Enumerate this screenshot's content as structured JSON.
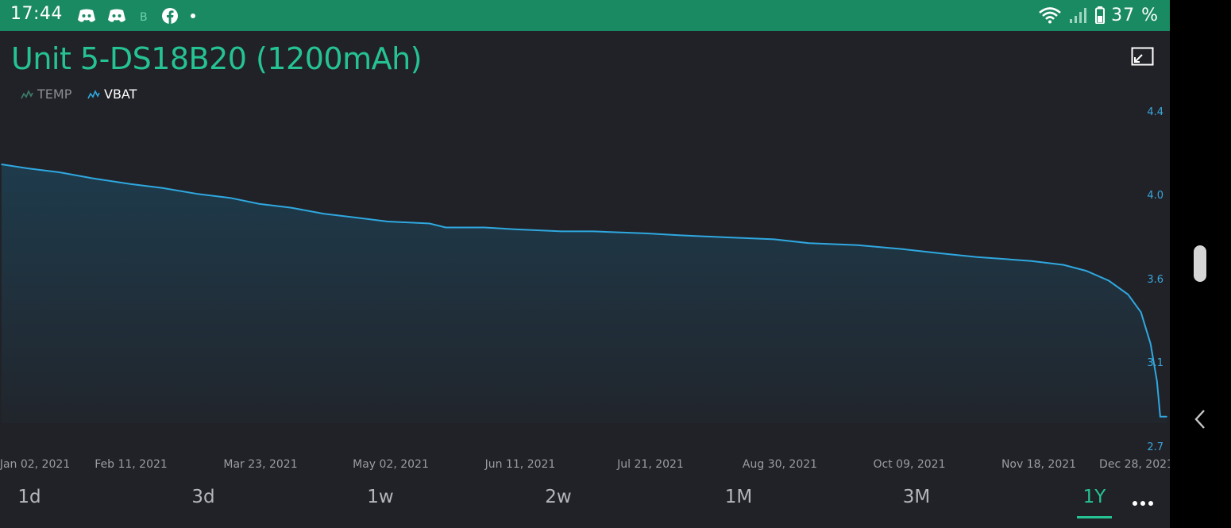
{
  "status_bar": {
    "time": "17:44",
    "battery": "37 %",
    "icons": [
      "discord-icon",
      "discord-icon",
      "bitcoin-icon",
      "facebook-icon",
      "dot-icon",
      "wifi-icon",
      "signal-icon",
      "battery-icon"
    ]
  },
  "widget": {
    "title": "Unit 5-DS18B20 (1200mAh)",
    "legend": [
      {
        "name": "TEMP",
        "active": false,
        "color": "#3f7d6a"
      },
      {
        "name": "VBAT",
        "active": true,
        "color": "#2fa8e0"
      }
    ]
  },
  "chart_data": {
    "type": "area",
    "series": [
      {
        "name": "VBAT",
        "color": "#2fa8e0",
        "points": [
          [
            "2021-01-02",
            4.13
          ],
          [
            "2021-01-10",
            4.11
          ],
          [
            "2021-01-20",
            4.09
          ],
          [
            "2021-01-30",
            4.06
          ],
          [
            "2021-02-11",
            4.03
          ],
          [
            "2021-02-21",
            4.01
          ],
          [
            "2021-03-04",
            3.98
          ],
          [
            "2021-03-14",
            3.96
          ],
          [
            "2021-03-23",
            3.93
          ],
          [
            "2021-04-02",
            3.91
          ],
          [
            "2021-04-12",
            3.88
          ],
          [
            "2021-04-22",
            3.86
          ],
          [
            "2021-05-02",
            3.84
          ],
          [
            "2021-05-15",
            3.83
          ],
          [
            "2021-05-20",
            3.81
          ],
          [
            "2021-06-01",
            3.81
          ],
          [
            "2021-06-11",
            3.8
          ],
          [
            "2021-06-25",
            3.79
          ],
          [
            "2021-07-05",
            3.79
          ],
          [
            "2021-07-21",
            3.78
          ],
          [
            "2021-08-01",
            3.77
          ],
          [
            "2021-08-15",
            3.76
          ],
          [
            "2021-08-30",
            3.75
          ],
          [
            "2021-09-10",
            3.73
          ],
          [
            "2021-09-25",
            3.72
          ],
          [
            "2021-10-09",
            3.7
          ],
          [
            "2021-10-20",
            3.68
          ],
          [
            "2021-11-01",
            3.66
          ],
          [
            "2021-11-18",
            3.64
          ],
          [
            "2021-11-28",
            3.62
          ],
          [
            "2021-12-05",
            3.59
          ],
          [
            "2021-12-12",
            3.54
          ],
          [
            "2021-12-18",
            3.47
          ],
          [
            "2021-12-22",
            3.38
          ],
          [
            "2021-12-25",
            3.22
          ],
          [
            "2021-12-27",
            3.03
          ],
          [
            "2021-12-28",
            2.85
          ],
          [
            "2021-12-30",
            2.85
          ]
        ]
      }
    ],
    "x_ticks": [
      "Jan 02, 2021",
      "Feb 11, 2021",
      "Mar 23, 2021",
      "May 02, 2021",
      "Jun 11, 2021",
      "Jul 21, 2021",
      "Aug 30, 2021",
      "Oct 09, 2021",
      "Nov 18, 2021",
      "Dec 28, 2021"
    ],
    "y_ticks": [
      "4.4",
      "4.0",
      "3.6",
      "3.1",
      "2.7"
    ],
    "x_range": [
      "2021-01-02",
      "2021-12-30"
    ],
    "y_range": [
      2.7,
      4.4
    ],
    "y_axis_side": "right",
    "grid": false
  },
  "periods": [
    {
      "label": "1d",
      "active": false
    },
    {
      "label": "3d",
      "active": false
    },
    {
      "label": "1w",
      "active": false
    },
    {
      "label": "2w",
      "active": false
    },
    {
      "label": "1M",
      "active": false
    },
    {
      "label": "3M",
      "active": false
    },
    {
      "label": "1Y",
      "active": true
    }
  ],
  "colors": {
    "accent": "#25c394",
    "status_bar": "#1a8a62",
    "background": "#212227",
    "series": "#2fa8e0"
  }
}
